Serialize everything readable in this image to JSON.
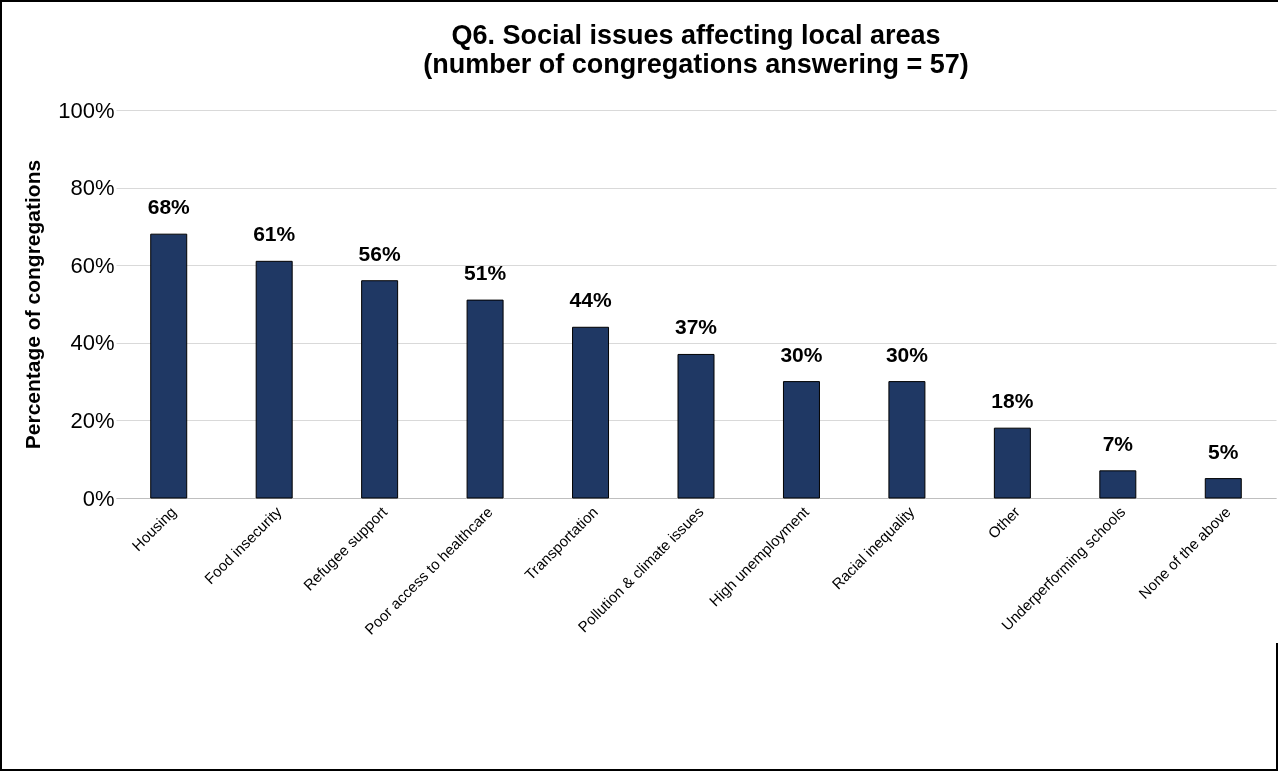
{
  "chart_data": {
    "type": "bar",
    "title": "Q6. Social issues affecting local areas\n(number of congregations answering = 57)",
    "ylabel": "Percentage of congregations",
    "categories": [
      "Housing",
      "Food insecurity",
      "Refugee support",
      "Poor access to healthcare",
      "Transportation",
      "Pollution & climate issues",
      "High unemployment",
      "Racial inequality",
      "Other",
      "Underperforming schools",
      "None of the above"
    ],
    "values": [
      68,
      61,
      56,
      51,
      44,
      37,
      30,
      30,
      18,
      7,
      5
    ],
    "value_labels": [
      "68%",
      "61%",
      "56%",
      "51%",
      "44%",
      "37%",
      "30%",
      "30%",
      "18%",
      "7%",
      "5%"
    ],
    "color": "#1f3864",
    "ylim": [
      0,
      100
    ],
    "yticks": [
      {
        "value": 0,
        "label": "0%"
      },
      {
        "value": 20,
        "label": "20%"
      },
      {
        "value": 40,
        "label": "40%"
      },
      {
        "value": 60,
        "label": "60%"
      },
      {
        "value": 80,
        "label": "80%"
      },
      {
        "value": 100,
        "label": "100%"
      }
    ],
    "grid": "y"
  }
}
